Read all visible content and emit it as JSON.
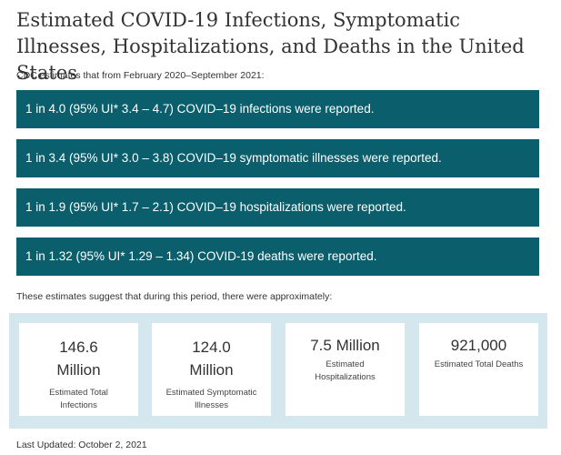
{
  "header": {
    "title": "Estimated COVID-19 Infections, Symptomatic Illnesses, Hospitalizations, and Deaths in the United States",
    "intro": "CDC estimates that from February 2020–September 2021:"
  },
  "ratios": [
    {
      "text": "1 in 4.0 (95% UI* 3.4 – 4.7) COVID–19 infections were reported."
    },
    {
      "text": "1 in 3.4 (95% UI* 3.0 – 3.8) COVID–19 symptomatic illnesses were reported."
    },
    {
      "text": "1 in 1.9 (95% UI* 1.7 – 2.1) COVID–19 hospitalizations were reported."
    },
    {
      "text": "1 in 1.32 (95% UI* 1.29 – 1.34) COVID-19 deaths were reported."
    }
  ],
  "summary": {
    "text": "These estimates suggest that during this period, there were approximately:"
  },
  "estimates": [
    {
      "value": "146.6 Million",
      "label": "Estimated Total Infections"
    },
    {
      "value": "124.0 Million",
      "label": "Estimated Symptomatic Illnesses"
    },
    {
      "value": "7.5 Million",
      "label": "Estimated Hospitalizations"
    },
    {
      "value": "921,000",
      "label": "Estimated Total Deaths"
    }
  ],
  "footer": {
    "updated": "Last Updated: October 2, 2021"
  },
  "colors": {
    "bar": "#0b5e6b",
    "panel": "#d4e7ee"
  }
}
